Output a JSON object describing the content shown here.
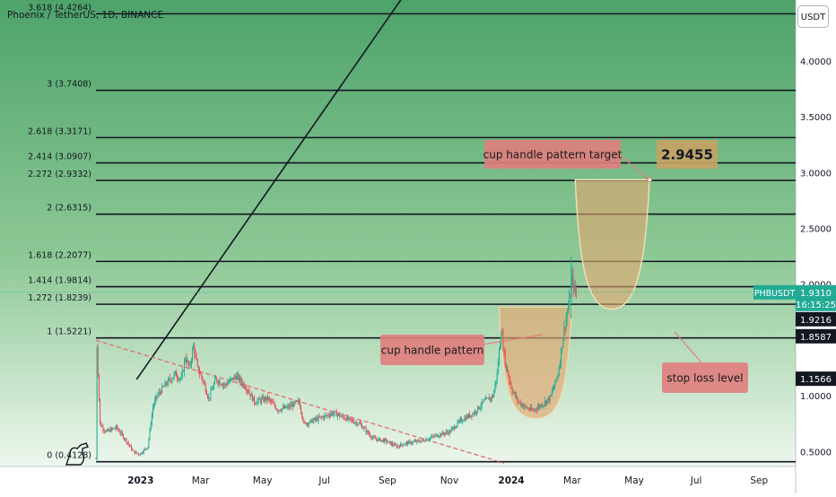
{
  "header": {
    "symbol_line": "Phoenix / TetherUS, 1D, BINANCE"
  },
  "currency_button": "USDT",
  "chart_data": {
    "type": "candlestick",
    "symbol": "PHBUSDT",
    "interval": "1D",
    "exchange": "BINANCE",
    "x_axis": {
      "range": [
        "2022-11-18",
        "2024-10-07"
      ],
      "ticks": [
        {
          "date": "2023-01-01",
          "label": "2023",
          "bold": true
        },
        {
          "date": "2023-03-01",
          "label": "Mar"
        },
        {
          "date": "2023-05-01",
          "label": "May"
        },
        {
          "date": "2023-07-01",
          "label": "Jul"
        },
        {
          "date": "2023-09-01",
          "label": "Sep"
        },
        {
          "date": "2023-11-01",
          "label": "Nov"
        },
        {
          "date": "2024-01-01",
          "label": "2024",
          "bold": true
        },
        {
          "date": "2024-03-01",
          "label": "Mar"
        },
        {
          "date": "2024-05-01",
          "label": "May"
        },
        {
          "date": "2024-07-01",
          "label": "Jul"
        },
        {
          "date": "2024-09-01",
          "label": "Sep"
        }
      ]
    },
    "y_axis": {
      "range": [
        0.37,
        4.55
      ],
      "ticks": [
        {
          "value": 0.5,
          "label": "0.5000"
        },
        {
          "value": 1.0,
          "label": "1.0000"
        },
        {
          "value": 2.0,
          "label": "2.0000"
        },
        {
          "value": 2.5,
          "label": "2.5000"
        },
        {
          "value": 3.0,
          "label": "3.0000"
        },
        {
          "value": 3.5,
          "label": "3.5000"
        },
        {
          "value": 4.0,
          "label": "4.0000"
        }
      ]
    },
    "fib_levels": [
      {
        "ratio": "0",
        "price": 0.4128,
        "label": "0 (0.4128)"
      },
      {
        "ratio": "1",
        "price": 1.5221,
        "label": "1 (1.5221)"
      },
      {
        "ratio": "1.272",
        "price": 1.8239,
        "label": "1.272 (1.8239)"
      },
      {
        "ratio": "1.414",
        "price": 1.9814,
        "label": "1.414 (1.9814)"
      },
      {
        "ratio": "1.618",
        "price": 2.2077,
        "label": "1.618 (2.2077)"
      },
      {
        "ratio": "2",
        "price": 2.6315,
        "label": "2 (2.6315)"
      },
      {
        "ratio": "2.272",
        "price": 2.9332,
        "label": "2.272 (2.9332)"
      },
      {
        "ratio": "2.414",
        "price": 3.0907,
        "label": "2.414 (3.0907)"
      },
      {
        "ratio": "2.618",
        "price": 3.3171,
        "label": "2.618 (3.3171)"
      },
      {
        "ratio": "3",
        "price": 3.7408,
        "label": "3 (3.7408)"
      },
      {
        "ratio": "3.618",
        "price": 4.4264,
        "label": "3.618 (4.4264)"
      }
    ],
    "price_labels": [
      {
        "id": "last",
        "title": "PHBUSDT",
        "value": "1.9310",
        "countdown": "16:15:25",
        "price": 1.931,
        "color": "#22ab94"
      },
      {
        "id": "lvl1",
        "value": "1.9216",
        "price": 1.9216,
        "color": "#131722"
      },
      {
        "id": "lvl2",
        "value": "1.8587",
        "price": 1.8587,
        "color": "#131722"
      },
      {
        "id": "lvl3",
        "value": "1.1566",
        "price": 1.1566,
        "color": "#131722"
      }
    ],
    "annotations": {
      "cup_pattern": "cup handle pattern",
      "cup_target": "cup handle pattern target",
      "target_value": "2.9455",
      "stop_loss": "stop loss level"
    },
    "trendlines": [
      {
        "name": "uptrend",
        "from": {
          "date": "2022-12-28",
          "price": 1.15
        },
        "to": {
          "date": "2023-10-07",
          "price": 4.85
        },
        "style": "solid"
      },
      {
        "name": "downtrend",
        "from": {
          "date": "2022-11-18",
          "price": 1.5
        },
        "to": {
          "date": "2023-12-25",
          "price": 0.4
        },
        "style": "dashed"
      }
    ],
    "candle_path": [
      {
        "date": "2022-11-18",
        "price": 0.44
      },
      {
        "date": "2022-11-19",
        "price": 1.45
      },
      {
        "date": "2022-11-22",
        "price": 0.75
      },
      {
        "date": "2022-11-28",
        "price": 0.68
      },
      {
        "date": "2022-12-08",
        "price": 0.72
      },
      {
        "date": "2022-12-18",
        "price": 0.6
      },
      {
        "date": "2022-12-25",
        "price": 0.5
      },
      {
        "date": "2022-12-31",
        "price": 0.48
      },
      {
        "date": "2023-01-08",
        "price": 0.55
      },
      {
        "date": "2023-01-13",
        "price": 0.9
      },
      {
        "date": "2023-01-17",
        "price": 1.0
      },
      {
        "date": "2023-01-25",
        "price": 1.1
      },
      {
        "date": "2023-02-04",
        "price": 1.2
      },
      {
        "date": "2023-02-10",
        "price": 1.15
      },
      {
        "date": "2023-02-14",
        "price": 1.35
      },
      {
        "date": "2023-02-18",
        "price": 1.25
      },
      {
        "date": "2023-02-22",
        "price": 1.45
      },
      {
        "date": "2023-02-26",
        "price": 1.25
      },
      {
        "date": "2023-03-03",
        "price": 1.15
      },
      {
        "date": "2023-03-09",
        "price": 0.98
      },
      {
        "date": "2023-03-16",
        "price": 1.15
      },
      {
        "date": "2023-03-25",
        "price": 1.1
      },
      {
        "date": "2023-04-05",
        "price": 1.18
      },
      {
        "date": "2023-04-15",
        "price": 1.08
      },
      {
        "date": "2023-04-23",
        "price": 0.95
      },
      {
        "date": "2023-05-06",
        "price": 0.98
      },
      {
        "date": "2023-05-16",
        "price": 0.88
      },
      {
        "date": "2023-05-26",
        "price": 0.9
      },
      {
        "date": "2023-06-06",
        "price": 0.95
      },
      {
        "date": "2023-06-11",
        "price": 0.75
      },
      {
        "date": "2023-06-25",
        "price": 0.8
      },
      {
        "date": "2023-07-10",
        "price": 0.85
      },
      {
        "date": "2023-07-22",
        "price": 0.8
      },
      {
        "date": "2023-08-05",
        "price": 0.75
      },
      {
        "date": "2023-08-18",
        "price": 0.62
      },
      {
        "date": "2023-08-30",
        "price": 0.6
      },
      {
        "date": "2023-09-10",
        "price": 0.55
      },
      {
        "date": "2023-09-20",
        "price": 0.58
      },
      {
        "date": "2023-10-05",
        "price": 0.6
      },
      {
        "date": "2023-10-20",
        "price": 0.65
      },
      {
        "date": "2023-11-01",
        "price": 0.68
      },
      {
        "date": "2023-11-12",
        "price": 0.78
      },
      {
        "date": "2023-11-25",
        "price": 0.85
      },
      {
        "date": "2023-12-05",
        "price": 0.95
      },
      {
        "date": "2023-12-14",
        "price": 1.0
      },
      {
        "date": "2023-12-18",
        "price": 1.2
      },
      {
        "date": "2023-12-22",
        "price": 1.6
      },
      {
        "date": "2023-12-26",
        "price": 1.3
      },
      {
        "date": "2024-01-02",
        "price": 1.05
      },
      {
        "date": "2024-01-08",
        "price": 0.95
      },
      {
        "date": "2024-01-15",
        "price": 0.9
      },
      {
        "date": "2024-01-22",
        "price": 0.87
      },
      {
        "date": "2024-01-30",
        "price": 0.92
      },
      {
        "date": "2024-02-08",
        "price": 0.98
      },
      {
        "date": "2024-02-16",
        "price": 1.2
      },
      {
        "date": "2024-02-22",
        "price": 1.6
      },
      {
        "date": "2024-02-27",
        "price": 1.85
      },
      {
        "date": "2024-03-01",
        "price": 2.05
      },
      {
        "date": "2024-03-03",
        "price": 1.95
      },
      {
        "date": "2024-03-05",
        "price": 1.93
      }
    ],
    "colors": {
      "up": "#22ab94",
      "down": "#e0505a",
      "background_top": "#4da36a",
      "background_bottom": "#eef7ee",
      "cup_fill": "#e4a770",
      "label_bg": "#e07e7e",
      "target_bg": "#c8a265"
    }
  }
}
